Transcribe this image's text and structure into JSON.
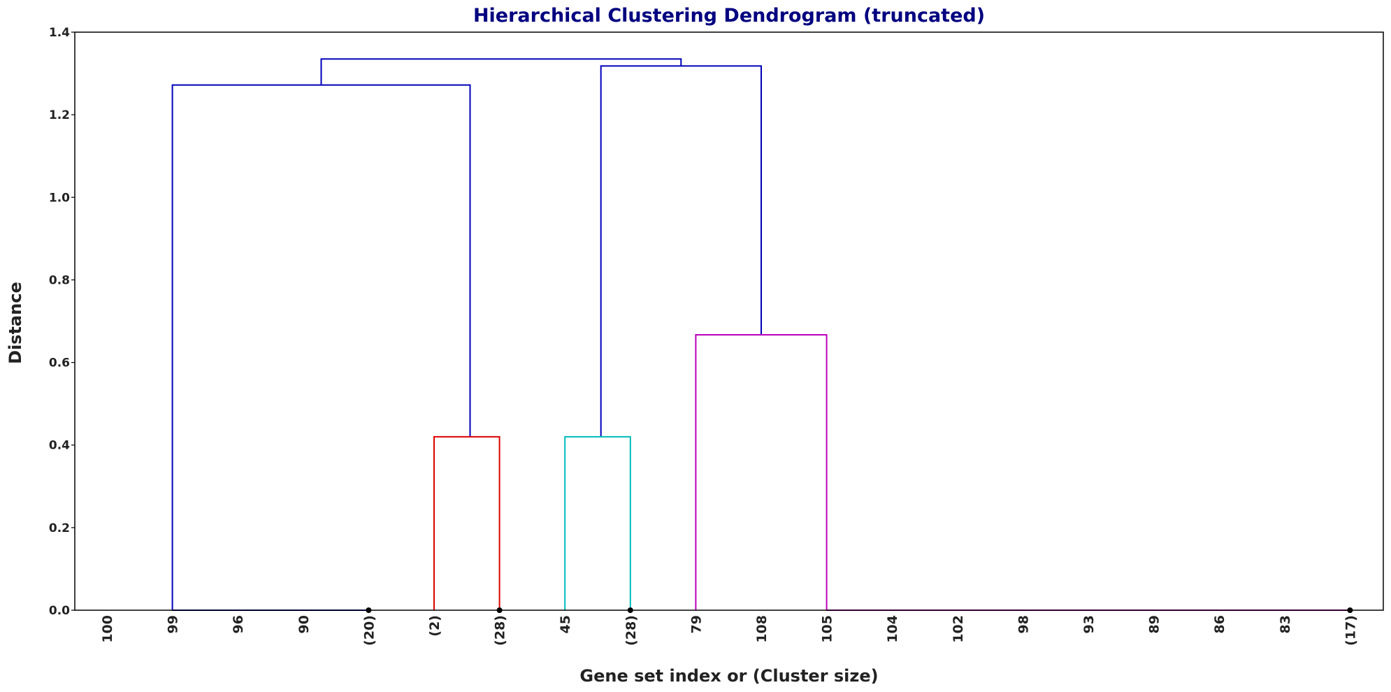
{
  "chart_data": {
    "type": "dendrogram",
    "title": "Hierarchical Clustering Dendrogram (truncated)",
    "xlabel": "Gene set index or (Cluster size)",
    "ylabel": "Distance",
    "ylim": [
      0,
      1.4
    ],
    "yticks": [
      "0.0",
      "0.2",
      "0.4",
      "0.6",
      "0.8",
      "1.0",
      "1.2",
      "1.4"
    ],
    "leaves": [
      "100",
      "99",
      "96",
      "90",
      "(20)",
      "(2)",
      "(28)",
      "45",
      "(28)",
      "79",
      "108",
      "105",
      "104",
      "102",
      "98",
      "93",
      "89",
      "86",
      "83",
      "(17)"
    ],
    "links": [
      {
        "color": "#0000bb",
        "x": [
          1.0,
          1.0,
          5.55,
          5.55
        ],
        "y": [
          0.0,
          1.272,
          1.272,
          0.42
        ]
      },
      {
        "color": "#0000bb",
        "x": [
          3.275,
          3.275,
          8.775,
          8.775
        ],
        "y": [
          1.272,
          1.335,
          1.335,
          1.318
        ]
      },
      {
        "color": "#0000bb",
        "x": [
          7.55,
          7.55,
          10.0,
          10.0
        ],
        "y": [
          0.42,
          1.318,
          1.318,
          0.667
        ]
      },
      {
        "color": "#dd0000",
        "x": [
          5.0,
          5.0,
          6.0,
          6.0
        ],
        "y": [
          0.0,
          0.42,
          0.42,
          0.0
        ]
      },
      {
        "color": "#00bbbb",
        "x": [
          7.0,
          7.0,
          8.0,
          8.0
        ],
        "y": [
          0.0,
          0.42,
          0.42,
          0.0
        ]
      },
      {
        "color": "#bb00bb",
        "x": [
          9.0,
          9.0,
          11.0,
          11.0
        ],
        "y": [
          0.0,
          0.667,
          0.667,
          0.0
        ]
      }
    ],
    "baselines": [
      {
        "color": "#0000bb",
        "x": [
          1.0,
          4.0
        ]
      },
      {
        "color": "#bb00bb",
        "x": [
          11.0,
          19.0
        ]
      }
    ],
    "truncation_markers_at": [
      4,
      6,
      8,
      19
    ],
    "colors": {
      "title": "#000080",
      "text": "#222222",
      "axis": "#000000",
      "marker": "#000000"
    }
  }
}
